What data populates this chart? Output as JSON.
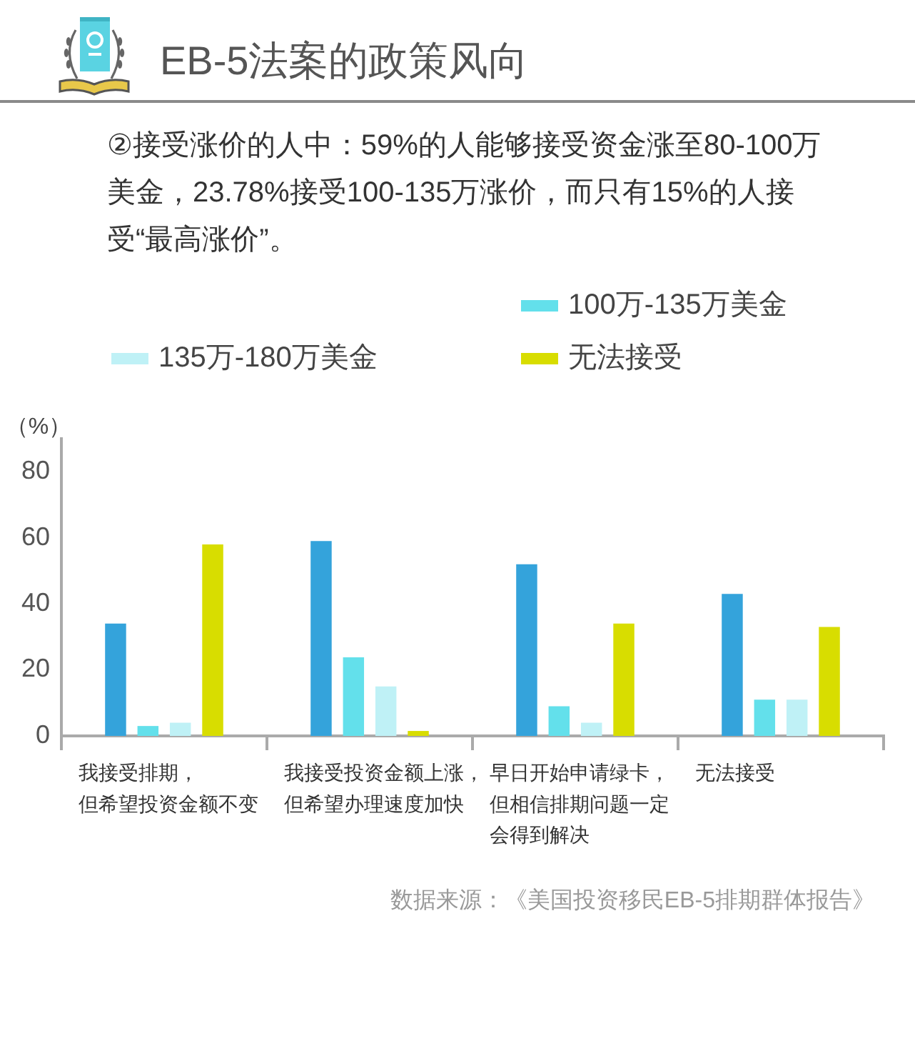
{
  "chart_data": {
    "type": "bar",
    "title": "EB-5法案的政策风向",
    "subtitle": "②接受涨价的人中：59%的人能够接受资金涨至80-100万美金，23.78%接受100-135万涨价，而只有15%的人接受“最高涨价”。",
    "ylabel": "（%）",
    "annotations": [
      "数据来源：《美国投资移民EB-5排期群体报告》"
    ],
    "categories": [
      "我接受排期，但希望投资金额不变",
      "我接受投资金额上涨，但希望办理速度加快",
      "早日开始申请绿卡，但相信排期问题一定会得到解决",
      "无法接受"
    ],
    "series": [
      {
        "color": "#34a3db",
        "values": [
          34,
          59,
          52,
          43
        ]
      },
      {
        "name": "100万-135万美金",
        "color": "#63e0eb",
        "values": [
          3,
          23.78,
          9,
          11
        ]
      },
      {
        "name": "135万-180万美金",
        "color": "#bff1f6",
        "values": [
          4,
          15,
          4,
          11
        ]
      },
      {
        "name": "无法接受",
        "color": "#d8dd00",
        "values": [
          58,
          1.5,
          34,
          33
        ]
      }
    ],
    "ylim": [
      0,
      90
    ],
    "yticks": [
      0,
      20,
      40,
      60,
      80
    ],
    "grid": false,
    "legend": "top"
  }
}
